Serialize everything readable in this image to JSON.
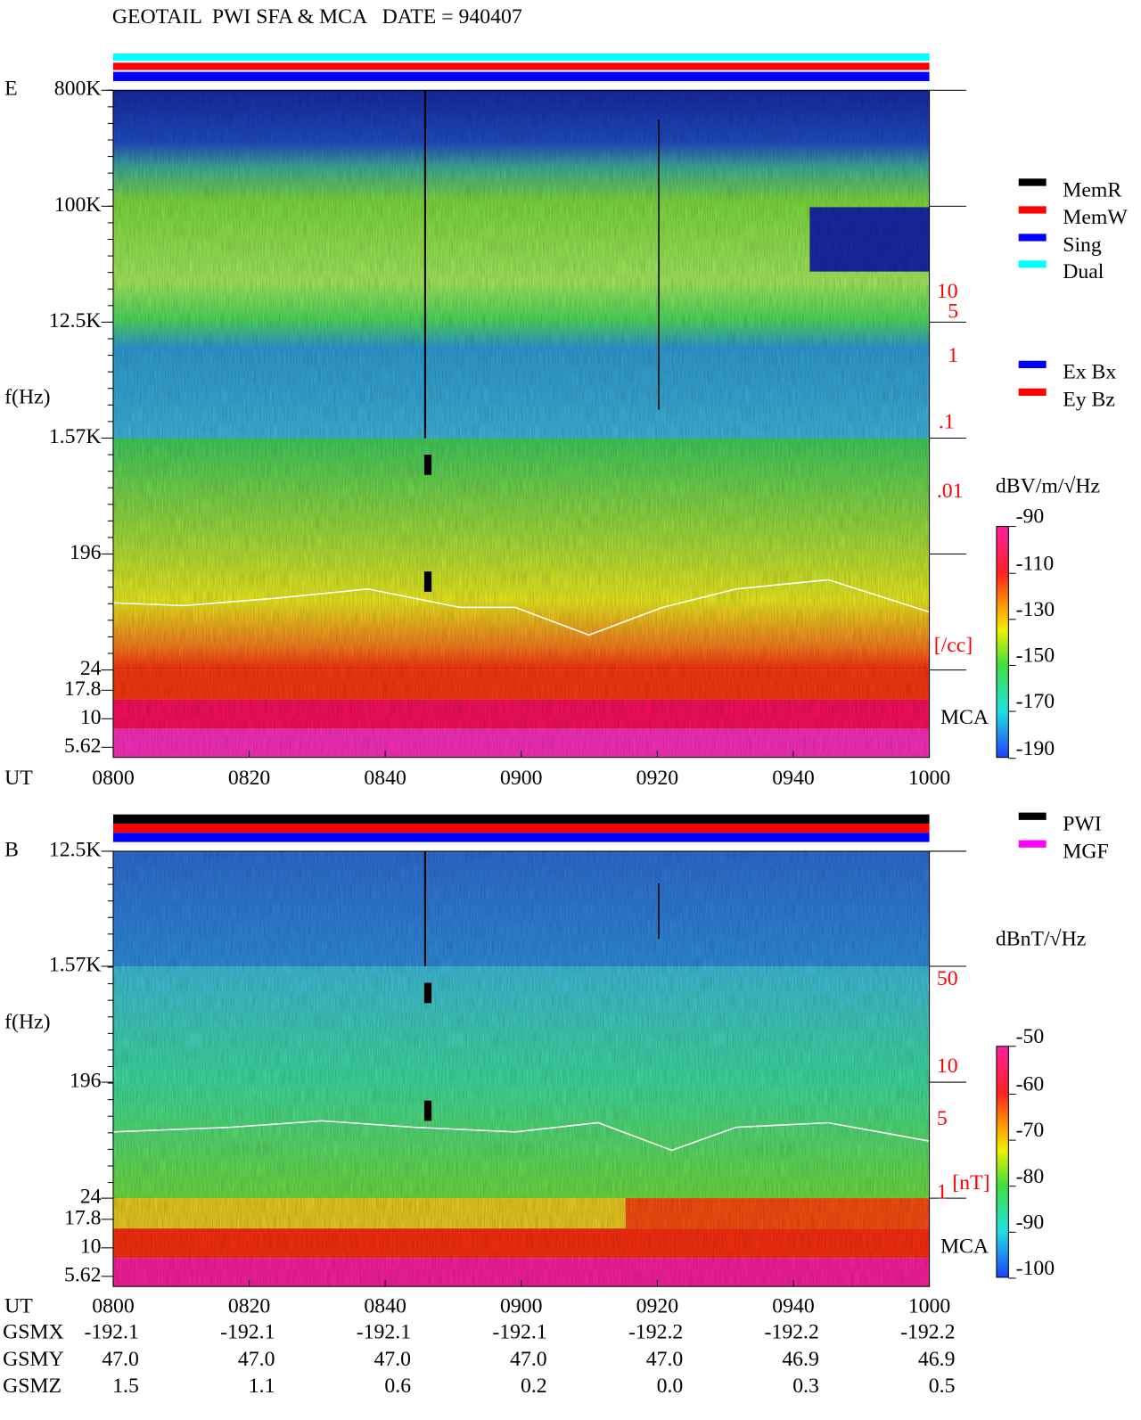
{
  "title": "GEOTAIL  PWI SFA & MCA   DATE = 940407",
  "panels": [
    {
      "label": "E",
      "ylabel": "f(Hz)",
      "yticks": [
        "800K",
        "100K",
        "12.5K",
        "1.57K",
        "196",
        "24",
        "17.8",
        "10",
        "5.62"
      ],
      "right_ticks": [
        "10",
        "5",
        "1",
        ".1",
        ".01",
        "[/cc]"
      ],
      "mca": "MCA",
      "xlabel": "UT",
      "xticks": [
        "0800",
        "0820",
        "0840",
        "0900",
        "0920",
        "0940",
        "1000"
      ],
      "legend": [
        {
          "name": "MemR",
          "color": "#000000"
        },
        {
          "name": "MemW",
          "color": "#ff0000"
        },
        {
          "name": "Sing",
          "color": "#0000ff"
        },
        {
          "name": "Dual",
          "color": "#00ffff"
        }
      ],
      "legend2": [
        {
          "name": "Ex Bx",
          "color": "#0000ff"
        },
        {
          "name": "Ey Bz",
          "color": "#ff0000"
        }
      ],
      "colorbar_label": "dBV/m/√Hz",
      "colorbar_ticks": [
        "-90",
        "-110",
        "-130",
        "-150",
        "-170",
        "-190"
      ]
    },
    {
      "label": "B",
      "ylabel": "f(Hz)",
      "yticks": [
        "12.5K",
        "1.57K",
        "196",
        "24",
        "17.8",
        "10",
        "5.62"
      ],
      "right_ticks": [
        "50",
        "10",
        "5",
        "1",
        "[nT]"
      ],
      "mca": "MCA",
      "xlabel": "UT",
      "xticks": [
        "0800",
        "0820",
        "0840",
        "0900",
        "0920",
        "0940",
        "1000"
      ],
      "legend": [
        {
          "name": "PWI",
          "color": "#000000"
        },
        {
          "name": "MGF",
          "color": "#ff00ff"
        }
      ],
      "colorbar_label": "dBnT/√Hz",
      "colorbar_ticks": [
        "-50",
        "-60",
        "-70",
        "-80",
        "-90",
        "-100"
      ]
    }
  ],
  "orbit": {
    "rows": [
      {
        "label": "GSMX",
        "values": [
          "-192.1",
          "-192.1",
          "-192.1",
          "-192.1",
          "-192.2",
          "-192.2",
          "-192.2"
        ]
      },
      {
        "label": "GSMY",
        "values": [
          "47.0",
          "47.0",
          "47.0",
          "47.0",
          "47.0",
          "46.9",
          "46.9"
        ]
      },
      {
        "label": "GSMZ",
        "values": [
          "1.5",
          "1.1",
          "0.6",
          "0.2",
          "0.0",
          "0.3",
          "0.5"
        ]
      }
    ]
  }
}
